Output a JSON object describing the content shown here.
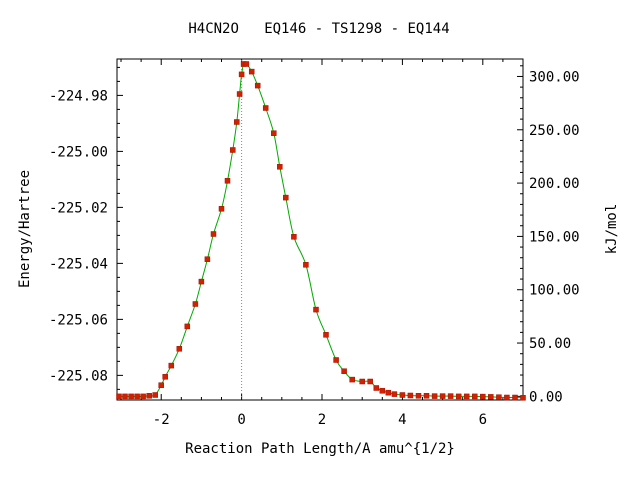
{
  "chart_data": {
    "type": "line",
    "title": "H4CN2O   EQ146 - TS1298 - EQ144",
    "xlabel": "Reaction Path Length/A amu^{1/2}",
    "ylabel_left": "Energy/Hartree",
    "ylabel_right": "kJ/mol",
    "xlim": [
      -3.1,
      7.0
    ],
    "ylim_left": [
      -225.0888,
      -224.967
    ],
    "x_ticks": [
      -2,
      0,
      2,
      4,
      6
    ],
    "x_tick_labels": [
      "-2",
      "0",
      "2",
      "4",
      "6"
    ],
    "y_ticks_left": [
      -224.98,
      -225.0,
      -225.02,
      -225.04,
      -225.06,
      -225.08
    ],
    "y_tick_labels_left": [
      "-224.98",
      "-225.00",
      "-225.02",
      "-225.04",
      "-225.06",
      "-225.08"
    ],
    "y_ticks_right_kj": [
      0,
      50,
      100,
      150,
      200,
      250,
      300
    ],
    "y_tick_labels_right": [
      "0.00",
      "50.00",
      "100.00",
      "150.00",
      "200.00",
      "250.00",
      "300.00"
    ],
    "right_axis_reference_hartree": -225.0875,
    "kj_per_hartree": 2625.5,
    "ts_x": 0,
    "grid": false,
    "colors": {
      "line": "#00aa00",
      "marker": "#d42000",
      "ts_line": "#888888",
      "axes": "#000000"
    },
    "series": [
      {
        "x": [
          -3.05,
          -2.9,
          -2.75,
          -2.6,
          -2.45,
          -2.3,
          -2.15,
          -2.0,
          -1.9,
          -1.75,
          -1.55,
          -1.35,
          -1.15,
          -1.0,
          -0.85,
          -0.7,
          -0.5,
          -0.35,
          -0.22,
          -0.12,
          -0.05,
          0.0,
          0.05,
          0.12,
          0.25,
          0.4,
          0.6,
          0.8,
          0.95,
          1.1,
          1.3,
          1.6,
          1.85,
          2.1,
          2.35,
          2.55,
          2.75,
          3.0,
          3.2,
          3.35,
          3.5,
          3.65,
          3.8,
          4.0,
          4.2,
          4.4,
          4.6,
          4.8,
          5.0,
          5.2,
          5.4,
          5.6,
          5.8,
          6.0,
          6.2,
          6.4,
          6.6,
          6.8,
          7.0
        ],
        "y": [
          -225.0875,
          -225.0875,
          -225.0875,
          -225.0875,
          -225.0875,
          -225.0873,
          -225.087,
          -225.0835,
          -225.0805,
          -225.0765,
          -225.0705,
          -225.0625,
          -225.0545,
          -225.0465,
          -225.0385,
          -225.0295,
          -225.0205,
          -225.0105,
          -224.9995,
          -224.9895,
          -224.9795,
          -224.9725,
          -224.9688,
          -224.9688,
          -224.9715,
          -224.9765,
          -224.9845,
          -224.9935,
          -225.0055,
          -225.0165,
          -225.0305,
          -225.0405,
          -225.0565,
          -225.0655,
          -225.0745,
          -225.0785,
          -225.0815,
          -225.0822,
          -225.0822,
          -225.0845,
          -225.0855,
          -225.0862,
          -225.0867,
          -225.087,
          -225.0872,
          -225.0873,
          -225.0873,
          -225.0874,
          -225.0874,
          -225.0874,
          -225.0875,
          -225.0875,
          -225.0875,
          -225.0876,
          -225.0877,
          -225.0878,
          -225.0879,
          -225.0879,
          -225.088
        ]
      }
    ]
  }
}
